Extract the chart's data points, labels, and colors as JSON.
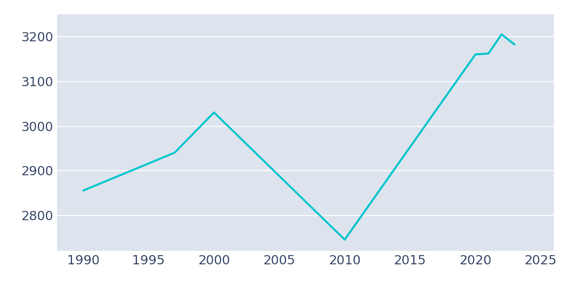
{
  "years": [
    1990,
    1997,
    2000,
    2010,
    2020,
    2021,
    2022,
    2023
  ],
  "population": [
    2855,
    2940,
    3030,
    2745,
    3160,
    3162,
    3205,
    3182
  ],
  "line_color": "#00C5CD",
  "plot_bg_color": "#DDE4EE",
  "fig_bg_color": "#ffffff",
  "grid_color": "#ffffff",
  "text_color": "#3a4a6a",
  "xlim": [
    1988,
    2026
  ],
  "ylim": [
    2720,
    3250
  ],
  "xticks": [
    1990,
    1995,
    2000,
    2005,
    2010,
    2015,
    2020,
    2025
  ],
  "yticks": [
    2800,
    2900,
    3000,
    3100,
    3200
  ],
  "linewidth": 2.0,
  "tick_labelsize": 13
}
